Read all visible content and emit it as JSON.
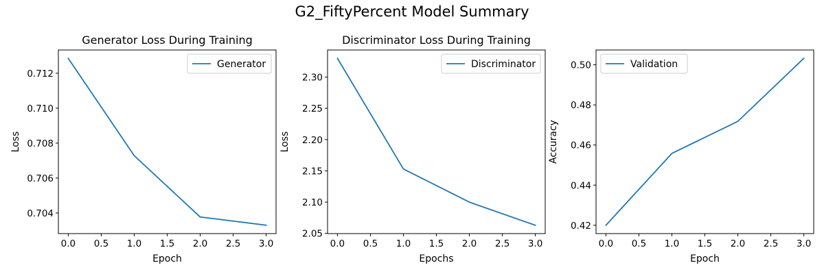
{
  "figure_title": "G2_FiftyPercent Model Summary",
  "colors": {
    "series": "#1f77b4"
  },
  "chart_data": [
    {
      "type": "line",
      "title": "Generator Loss During Training",
      "xlabel": "Epoch",
      "ylabel": "Loss",
      "x": [
        0,
        1,
        2,
        3
      ],
      "series": [
        {
          "name": "Generator",
          "values": [
            0.71285,
            0.70728,
            0.70377,
            0.7033
          ]
        }
      ],
      "xlim": [
        -0.15,
        3.15
      ],
      "ylim": [
        0.70282,
        0.71333
      ],
      "xticks": [
        0.0,
        0.5,
        1.0,
        1.5,
        2.0,
        2.5,
        3.0
      ],
      "xtick_labels": [
        "0.0",
        "0.5",
        "1.0",
        "1.5",
        "2.0",
        "2.5",
        "3.0"
      ],
      "yticks": [
        0.704,
        0.706,
        0.708,
        0.71,
        0.712
      ],
      "ytick_labels": [
        "0.704",
        "0.706",
        "0.708",
        "0.710",
        "0.712"
      ],
      "legend": "top-right",
      "grid": false
    },
    {
      "type": "line",
      "title": "Discriminator Loss During Training",
      "xlabel": "Epochs",
      "ylabel": "Loss",
      "x": [
        0,
        1,
        2,
        3
      ],
      "series": [
        {
          "name": "Discriminator",
          "values": [
            2.33,
            2.153,
            2.1,
            2.063
          ]
        }
      ],
      "xlim": [
        -0.15,
        3.15
      ],
      "ylim": [
        2.0497,
        2.3433
      ],
      "xticks": [
        0.0,
        0.5,
        1.0,
        1.5,
        2.0,
        2.5,
        3.0
      ],
      "xtick_labels": [
        "0.0",
        "0.5",
        "1.0",
        "1.5",
        "2.0",
        "2.5",
        "3.0"
      ],
      "yticks": [
        2.05,
        2.1,
        2.15,
        2.2,
        2.25,
        2.3
      ],
      "ytick_labels": [
        "2.05",
        "2.10",
        "2.15",
        "2.20",
        "2.25",
        "2.30"
      ],
      "legend": "top-right",
      "grid": false
    },
    {
      "type": "line",
      "title": "",
      "xlabel": "Epoch",
      "ylabel": "Accuracy",
      "x": [
        0,
        1,
        2,
        3
      ],
      "series": [
        {
          "name": "Validation",
          "values": [
            0.42,
            0.4558,
            0.4718,
            0.5032
          ]
        }
      ],
      "xlim": [
        -0.15,
        3.15
      ],
      "ylim": [
        0.41584,
        0.50736
      ],
      "xticks": [
        0.0,
        0.5,
        1.0,
        1.5,
        2.0,
        2.5,
        3.0
      ],
      "xtick_labels": [
        "0.0",
        "0.5",
        "1.0",
        "1.5",
        "2.0",
        "2.5",
        "3.0"
      ],
      "yticks": [
        0.42,
        0.44,
        0.46,
        0.48,
        0.5
      ],
      "ytick_labels": [
        "0.42",
        "0.44",
        "0.46",
        "0.48",
        "0.50"
      ],
      "legend": "top-left",
      "grid": false
    }
  ]
}
